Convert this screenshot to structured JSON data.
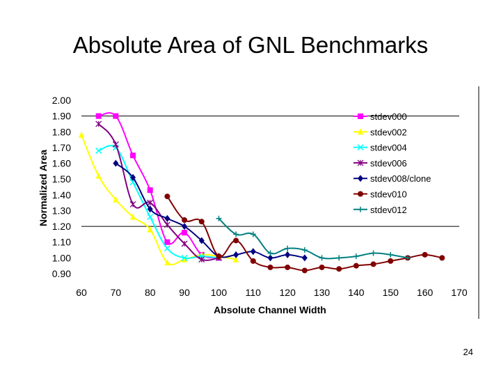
{
  "slide": {
    "title": "Absolute Area of GNL Benchmarks",
    "page_number": "24"
  },
  "chart_data": {
    "type": "line",
    "title": "",
    "xlabel": "Absolute Channel Width",
    "ylabel": "Normalized Area",
    "xlim": [
      60,
      170
    ],
    "ylim": [
      0.9,
      2.0
    ],
    "x_ticks": [
      "60",
      "70",
      "80",
      "90",
      "100",
      "110",
      "120",
      "130",
      "140",
      "150",
      "160",
      "170"
    ],
    "y_ticks": [
      "2.00",
      "1.90",
      "1.80",
      "1.70",
      "1.60",
      "1.50",
      "1.40",
      "1.30",
      "1.20",
      "1.10",
      "1.00",
      "0.90"
    ],
    "grid_y": [
      1.2,
      1.9
    ],
    "legend_position": "top-right",
    "series": [
      {
        "name": "stdev000",
        "color": "#ff00ff",
        "marker": "square",
        "points": [
          [
            65,
            1.9
          ],
          [
            70,
            1.9
          ],
          [
            75,
            1.65
          ],
          [
            80,
            1.43
          ],
          [
            85,
            1.1
          ],
          [
            90,
            1.16
          ],
          [
            95,
            1.02
          ],
          [
            100,
            1.0
          ]
        ]
      },
      {
        "name": "stdev002",
        "color": "#ffff00",
        "marker": "triangle",
        "points": [
          [
            60,
            1.78
          ],
          [
            65,
            1.52
          ],
          [
            70,
            1.37
          ],
          [
            75,
            1.26
          ],
          [
            80,
            1.18
          ],
          [
            85,
            0.97
          ],
          [
            90,
            0.99
          ],
          [
            95,
            1.02
          ],
          [
            100,
            1.01
          ],
          [
            105,
            0.99
          ]
        ]
      },
      {
        "name": "stdev004",
        "color": "#00ffff",
        "marker": "x",
        "points": [
          [
            65,
            1.68
          ],
          [
            70,
            1.7
          ],
          [
            75,
            1.48
          ],
          [
            80,
            1.26
          ],
          [
            85,
            1.06
          ],
          [
            90,
            1.0
          ],
          [
            95,
            1.01
          ],
          [
            100,
            1.0
          ]
        ]
      },
      {
        "name": "stdev006",
        "color": "#800080",
        "marker": "star",
        "points": [
          [
            65,
            1.85
          ],
          [
            70,
            1.72
          ],
          [
            75,
            1.34
          ],
          [
            80,
            1.35
          ],
          [
            85,
            1.21
          ],
          [
            90,
            1.09
          ],
          [
            95,
            0.99
          ],
          [
            100,
            1.0
          ]
        ]
      },
      {
        "name": "stdev008/clone",
        "color": "#000080",
        "marker": "diamond",
        "points": [
          [
            70,
            1.6
          ],
          [
            75,
            1.51
          ],
          [
            80,
            1.31
          ],
          [
            85,
            1.25
          ],
          [
            90,
            1.2
          ],
          [
            95,
            1.11
          ],
          [
            100,
            1.01
          ],
          [
            105,
            1.02
          ],
          [
            110,
            1.04
          ],
          [
            115,
            1.0
          ],
          [
            120,
            1.02
          ],
          [
            125,
            1.0
          ]
        ]
      },
      {
        "name": "stdev010",
        "color": "#800000",
        "marker": "circle",
        "points": [
          [
            85,
            1.39
          ],
          [
            90,
            1.24
          ],
          [
            95,
            1.23
          ],
          [
            100,
            1.01
          ],
          [
            105,
            1.11
          ],
          [
            110,
            0.98
          ],
          [
            115,
            0.94
          ],
          [
            120,
            0.94
          ],
          [
            125,
            0.92
          ],
          [
            130,
            0.94
          ],
          [
            135,
            0.93
          ],
          [
            140,
            0.95
          ],
          [
            145,
            0.96
          ],
          [
            150,
            0.98
          ],
          [
            155,
            1.0
          ],
          [
            160,
            1.02
          ],
          [
            165,
            1.0
          ]
        ]
      },
      {
        "name": "stdev012",
        "color": "#008080",
        "marker": "plus",
        "points": [
          [
            100,
            1.25
          ],
          [
            105,
            1.15
          ],
          [
            110,
            1.15
          ],
          [
            115,
            1.03
          ],
          [
            120,
            1.06
          ],
          [
            125,
            1.05
          ],
          [
            130,
            1.0
          ],
          [
            135,
            1.0
          ],
          [
            140,
            1.01
          ],
          [
            145,
            1.03
          ],
          [
            150,
            1.02
          ],
          [
            155,
            1.0
          ]
        ]
      }
    ]
  }
}
